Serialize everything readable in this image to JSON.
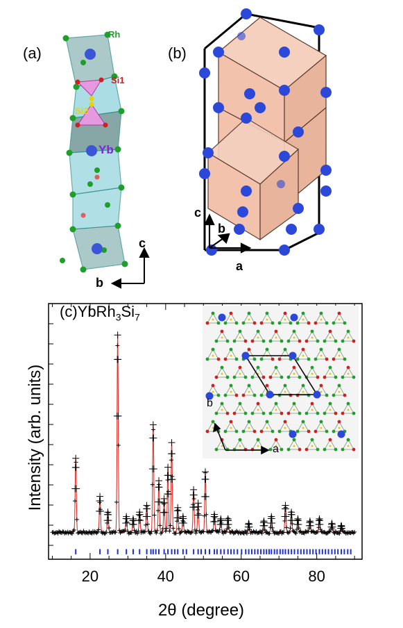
{
  "panel_a": {
    "label": "(a)",
    "atoms": {
      "rh": "Rh",
      "si1": "Si1",
      "si2": "Si2",
      "yb": "Yb"
    },
    "axes": {
      "c": "c",
      "b": "b"
    },
    "colors": {
      "rh": "#1f9e2a",
      "si1": "#d11f1f",
      "si2": "#e8d400",
      "yb": "#3a55d6",
      "poly": "#8fd2dc",
      "poly_dark": "#7a9a9a",
      "si_poly": "#e59adf"
    }
  },
  "panel_b": {
    "label": "(b)",
    "axes": {
      "c": "c",
      "b": "b",
      "a": "a"
    },
    "colors": {
      "face": "#f2c2ad",
      "edge": "#5a3b30",
      "atom": "#2c48d8"
    }
  },
  "panel_c": {
    "label_prefix": "(c)YbRh",
    "sub1": "3",
    "label_mid": "Si",
    "sub2": "7",
    "inset_axes": {
      "b": "b",
      "a": "a"
    }
  },
  "chart_data": {
    "type": "scatter",
    "title": "",
    "xlabel": "2θ  (degree)",
    "ylabel": "Intensity (arb. units)",
    "xlim": [
      9,
      92
    ],
    "ylim": [
      -0.08,
      1.06
    ],
    "x_ticks": [
      20,
      40,
      60,
      80
    ],
    "y_ticks_labeled": false,
    "series": [
      {
        "name": "observed",
        "marker": "+",
        "color": "#000000"
      },
      {
        "name": "calculated",
        "color": "#e0322a"
      },
      {
        "name": "bragg positions",
        "marker": "|",
        "color": "#1f2fd8"
      }
    ],
    "background": 0.04,
    "peaks": [
      {
        "x": 16.2,
        "y": 0.33
      },
      {
        "x": 22.6,
        "y": 0.16
      },
      {
        "x": 24.7,
        "y": 0.09
      },
      {
        "x": 27.3,
        "y": 0.88
      },
      {
        "x": 29.6,
        "y": 0.07
      },
      {
        "x": 31.4,
        "y": 0.06
      },
      {
        "x": 33.1,
        "y": 0.09
      },
      {
        "x": 35.0,
        "y": 0.12
      },
      {
        "x": 36.7,
        "y": 0.48
      },
      {
        "x": 38.2,
        "y": 0.23
      },
      {
        "x": 39.6,
        "y": 0.15
      },
      {
        "x": 40.6,
        "y": 0.29
      },
      {
        "x": 41.6,
        "y": 0.4
      },
      {
        "x": 43.2,
        "y": 0.11
      },
      {
        "x": 44.6,
        "y": 0.07
      },
      {
        "x": 47.4,
        "y": 0.19
      },
      {
        "x": 48.6,
        "y": 0.13
      },
      {
        "x": 50.5,
        "y": 0.27
      },
      {
        "x": 52.9,
        "y": 0.08
      },
      {
        "x": 54.6,
        "y": 0.06
      },
      {
        "x": 56.5,
        "y": 0.06
      },
      {
        "x": 62.0,
        "y": 0.04
      },
      {
        "x": 66.0,
        "y": 0.05
      },
      {
        "x": 68.0,
        "y": 0.07
      },
      {
        "x": 71.7,
        "y": 0.12
      },
      {
        "x": 73.3,
        "y": 0.09
      },
      {
        "x": 75.0,
        "y": 0.06
      },
      {
        "x": 78.2,
        "y": 0.05
      },
      {
        "x": 80.7,
        "y": 0.06
      },
      {
        "x": 84.0,
        "y": 0.04
      },
      {
        "x": 86.5,
        "y": 0.03
      }
    ],
    "bragg_positions": [
      16.2,
      22.6,
      24.7,
      27.3,
      29.6,
      31.4,
      33.1,
      35.0,
      36.1,
      36.7,
      37.4,
      38.2,
      39.6,
      40.6,
      41.6,
      42.4,
      43.2,
      44.6,
      45.5,
      47.4,
      48.6,
      49.4,
      50.5,
      51.6,
      52.9,
      53.6,
      54.6,
      55.5,
      56.5,
      57.3,
      58.1,
      59.0,
      60.1,
      61.2,
      62.0,
      62.8,
      63.6,
      64.4,
      65.2,
      66.0,
      66.7,
      67.4,
      68.0,
      68.8,
      69.5,
      70.3,
      71.0,
      71.7,
      72.5,
      73.3,
      74.1,
      75.0,
      75.8,
      76.6,
      77.4,
      78.2,
      79.0,
      79.8,
      80.7,
      81.5,
      82.3,
      83.1,
      84.0,
      84.8,
      85.6,
      86.5,
      87.3,
      88.2,
      89.0
    ]
  }
}
